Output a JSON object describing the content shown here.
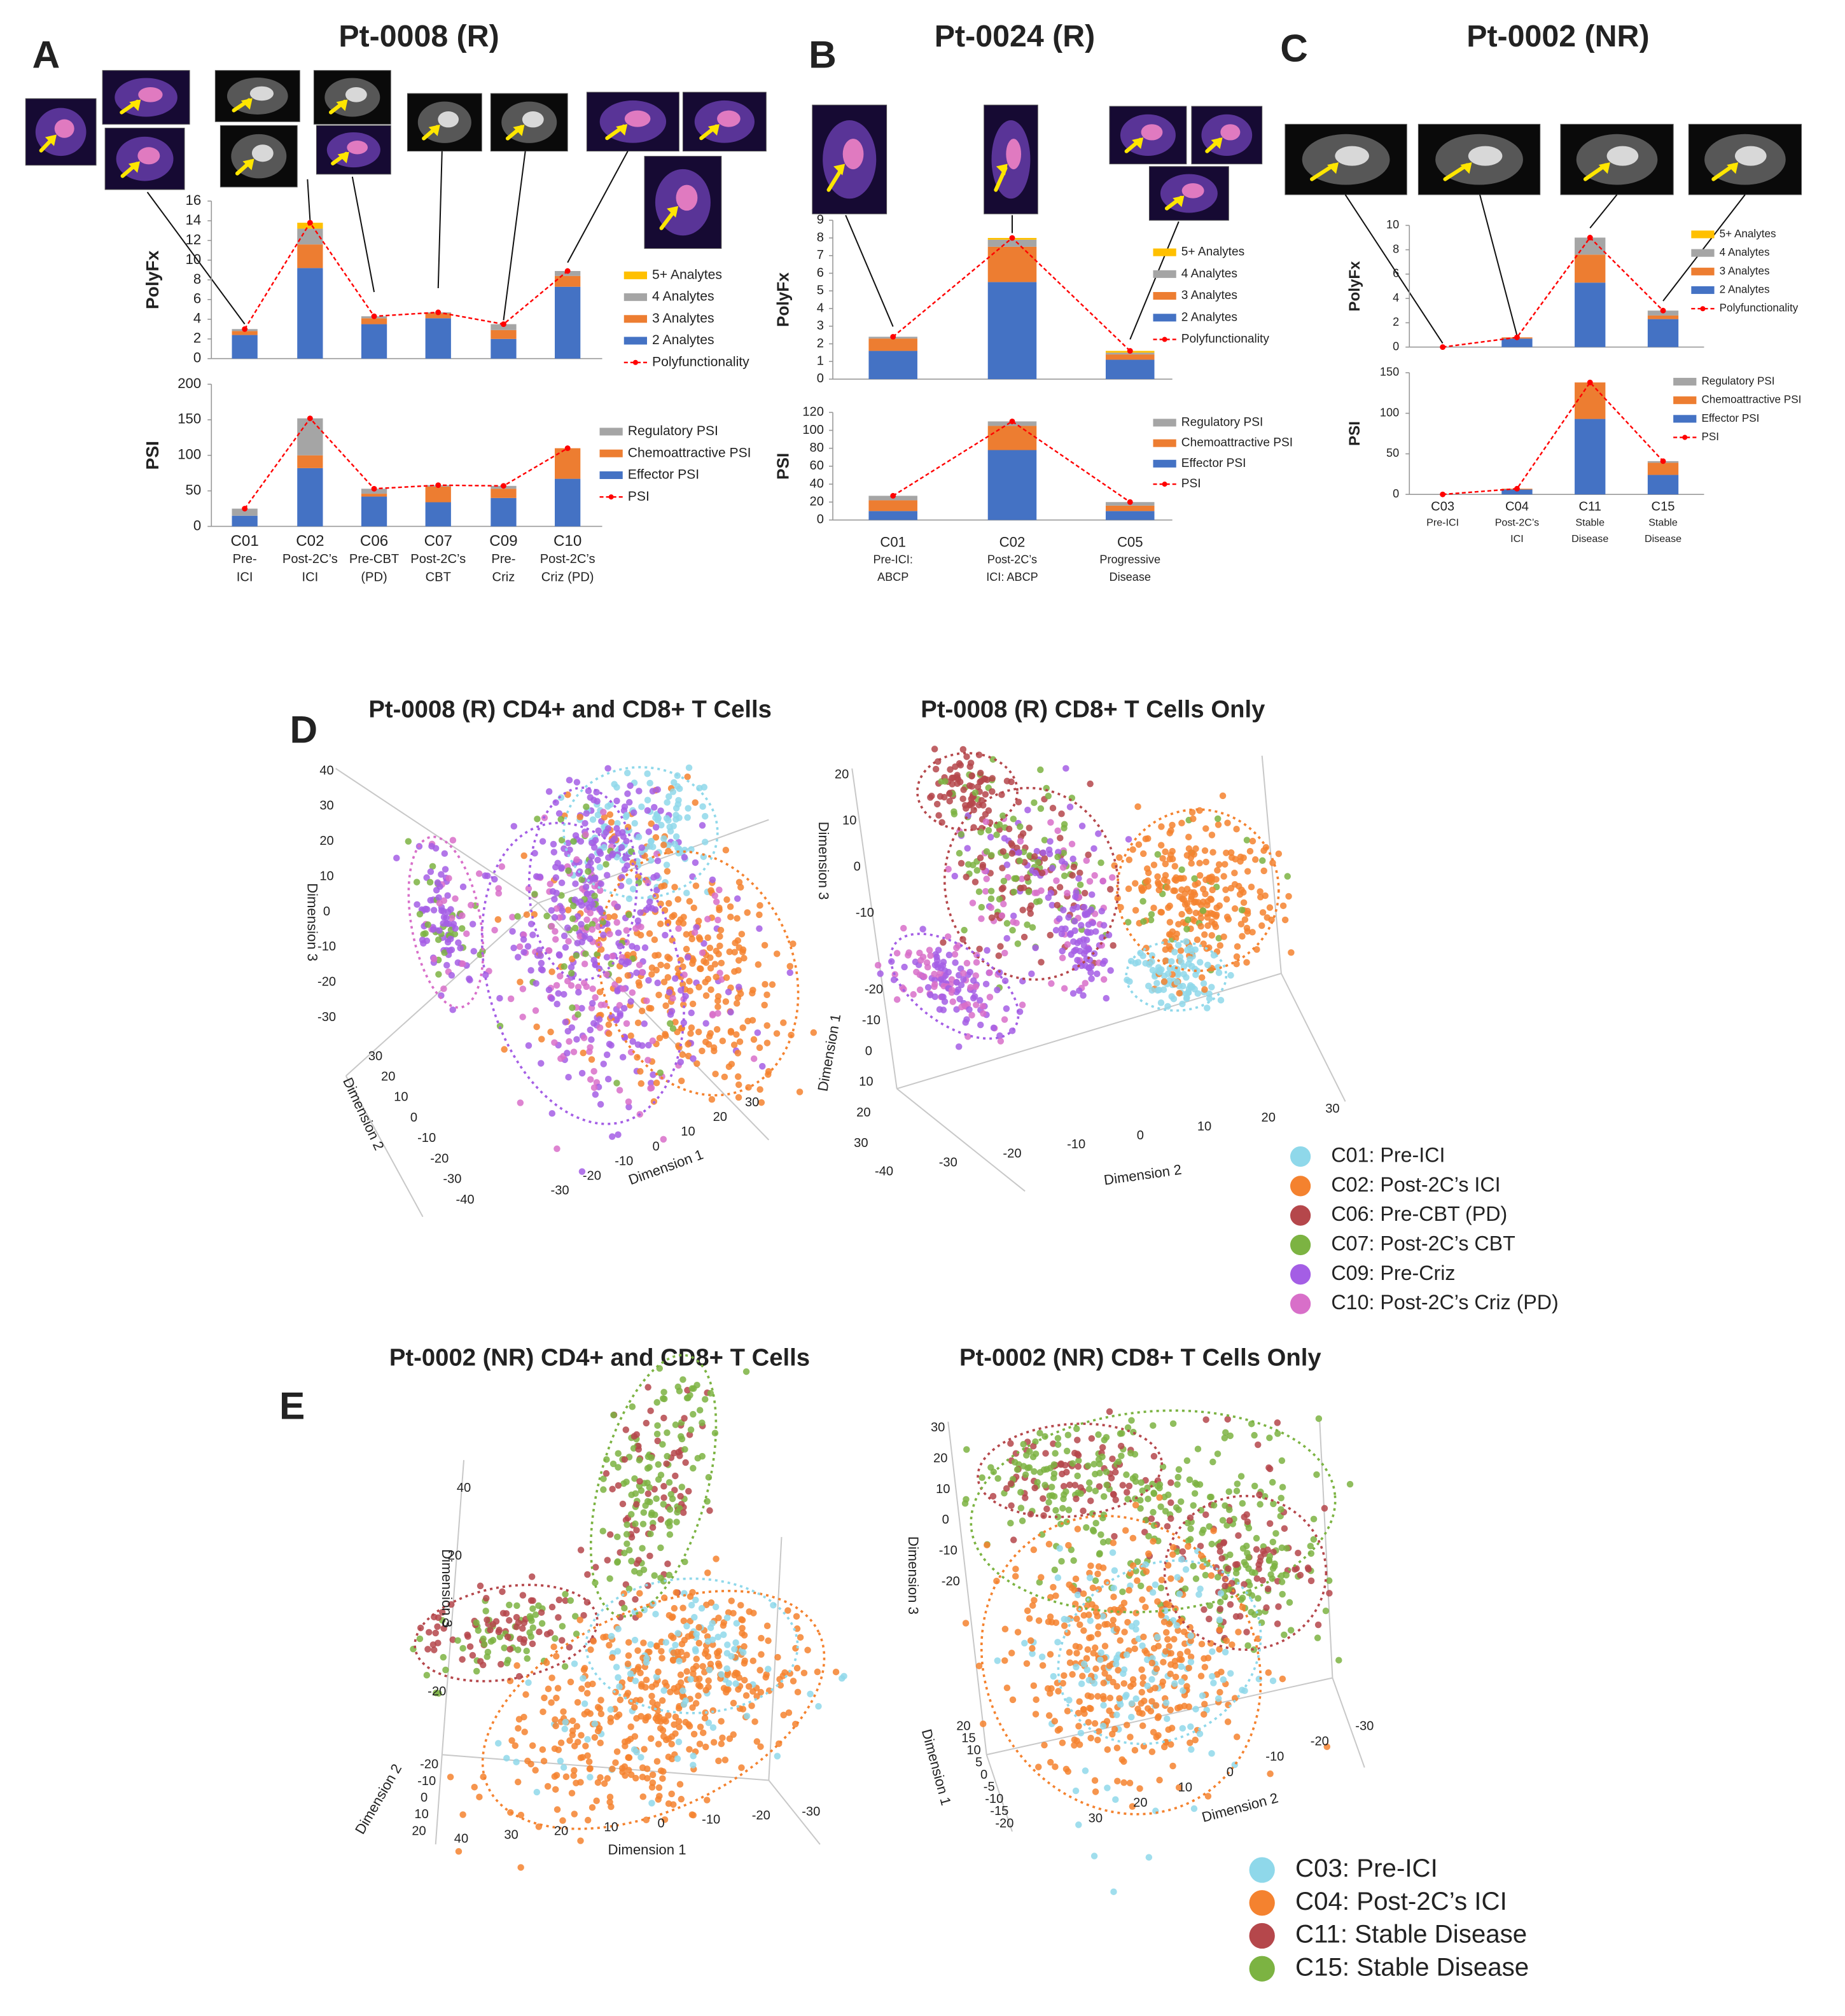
{
  "chart_data": [
    {
      "type": "bar",
      "panel_label": "A",
      "title": "Pt-0008 (R)",
      "ylabel": "PolyFx",
      "ylim": [
        0,
        16
      ],
      "yticks": [
        0,
        2,
        4,
        6,
        8,
        10,
        12,
        14,
        16
      ],
      "series": [
        {
          "name": "2 Analytes",
          "color": "#4472c4",
          "values": [
            2.4,
            9.2,
            3.5,
            4.1,
            2.0,
            7.3
          ]
        },
        {
          "name": "3 Analytes",
          "color": "#ed7d31",
          "values": [
            0.4,
            2.4,
            0.6,
            0.5,
            0.9,
            1.1
          ]
        },
        {
          "name": "4 Analytes",
          "color": "#a5a5a5",
          "values": [
            0.2,
            1.6,
            0.2,
            0.1,
            0.6,
            0.5
          ]
        },
        {
          "name": "5+ Analytes",
          "color": "#ffc000",
          "values": [
            0,
            0.6,
            0,
            0,
            0,
            0
          ]
        },
        {
          "name": "Polyfunctionality",
          "color": "#ff0000",
          "type": "line",
          "values": [
            3.0,
            13.8,
            4.3,
            4.7,
            3.5,
            8.9
          ]
        }
      ]
    },
    {
      "type": "bar",
      "ylabel": "PSI",
      "ylim": [
        0,
        200
      ],
      "yticks": [
        0,
        50,
        100,
        150,
        200
      ],
      "categories": [
        [
          "C01",
          "Pre-",
          "ICI"
        ],
        [
          "C02",
          "Post-2C’s",
          "ICI"
        ],
        [
          "C06",
          "Pre-CBT",
          "(PD)"
        ],
        [
          "C07",
          "Post-2C’s",
          "CBT"
        ],
        [
          "C09",
          "Pre-",
          "Criz"
        ],
        [
          "C10",
          "Post-2C’s",
          "Criz (PD)"
        ]
      ],
      "series": [
        {
          "name": "Effector PSI",
          "color": "#4472c4",
          "values": [
            15,
            82,
            42,
            34,
            40,
            67
          ]
        },
        {
          "name": "Chemoattractive PSI",
          "color": "#ed7d31",
          "values": [
            0,
            18,
            4,
            22,
            13,
            43
          ]
        },
        {
          "name": "Regulatory PSI",
          "color": "#a5a5a5",
          "values": [
            10,
            52,
            7,
            2,
            4,
            0
          ]
        },
        {
          "name": "PSI",
          "color": "#ff0000",
          "type": "line",
          "values": [
            25,
            152,
            53,
            58,
            57,
            110
          ]
        }
      ]
    },
    {
      "type": "bar",
      "panel_label": "B",
      "title": "Pt-0024 (R)",
      "ylabel": "PolyFx",
      "ylim": [
        0,
        9
      ],
      "yticks": [
        0,
        1,
        2,
        3,
        4,
        5,
        6,
        7,
        8,
        9
      ],
      "series": [
        {
          "name": "2 Analytes",
          "color": "#4472c4",
          "values": [
            1.6,
            5.5,
            1.1
          ]
        },
        {
          "name": "3 Analytes",
          "color": "#ed7d31",
          "values": [
            0.7,
            2.0,
            0.3
          ]
        },
        {
          "name": "4 Analytes",
          "color": "#a5a5a5",
          "values": [
            0.1,
            0.4,
            0.1
          ]
        },
        {
          "name": "5+ Analytes",
          "color": "#ffc000",
          "values": [
            0,
            0.1,
            0.1
          ]
        },
        {
          "name": "Polyfunctionality",
          "color": "#ff0000",
          "type": "line",
          "values": [
            2.4,
            8.0,
            1.6
          ]
        }
      ]
    },
    {
      "type": "bar",
      "ylabel": "PSI",
      "ylim": [
        0,
        120
      ],
      "yticks": [
        0,
        20,
        40,
        60,
        80,
        100,
        120
      ],
      "categories": [
        [
          "C01",
          "Pre-ICI:",
          "ABCP"
        ],
        [
          "C02",
          "Post-2C’s",
          "ICI: ABCP"
        ],
        [
          "C05",
          "Progressive",
          "Disease"
        ]
      ],
      "series": [
        {
          "name": "Effector PSI",
          "color": "#4472c4",
          "values": [
            10,
            78,
            10
          ]
        },
        {
          "name": "Chemoattractive PSI",
          "color": "#ed7d31",
          "values": [
            12,
            27,
            6
          ]
        },
        {
          "name": "Regulatory PSI",
          "color": "#a5a5a5",
          "values": [
            5,
            5,
            4
          ]
        },
        {
          "name": "PSI",
          "color": "#ff0000",
          "type": "line",
          "values": [
            27,
            110,
            20
          ]
        }
      ]
    },
    {
      "type": "bar",
      "panel_label": "C",
      "title": "Pt-0002 (NR)",
      "ylabel": "PolyFx",
      "ylim": [
        0,
        10
      ],
      "yticks": [
        0,
        2,
        4,
        6,
        8,
        10
      ],
      "series": [
        {
          "name": "2 Analytes",
          "color": "#4472c4",
          "values": [
            0,
            0.7,
            5.3,
            2.3
          ]
        },
        {
          "name": "3 Analytes",
          "color": "#ed7d31",
          "values": [
            0,
            0.1,
            2.3,
            0.3
          ]
        },
        {
          "name": "4 Analytes",
          "color": "#a5a5a5",
          "values": [
            0,
            0,
            1.4,
            0.4
          ]
        },
        {
          "name": "5+ Analytes",
          "color": "#ffc000",
          "values": [
            0,
            0,
            0,
            0
          ]
        },
        {
          "name": "Polyfunctionality",
          "color": "#ff0000",
          "type": "line",
          "values": [
            0,
            0.8,
            9.0,
            3.0
          ]
        }
      ]
    },
    {
      "type": "bar",
      "ylabel": "PSI",
      "ylim": [
        0,
        150
      ],
      "yticks": [
        0,
        50,
        100,
        150
      ],
      "categories": [
        [
          "C03",
          "Pre-ICI"
        ],
        [
          "C04",
          "Post-2C’s",
          "ICI"
        ],
        [
          "C11",
          "Stable",
          "Disease"
        ],
        [
          "C15",
          "Stable",
          "Disease"
        ]
      ],
      "series": [
        {
          "name": "Effector PSI",
          "color": "#4472c4",
          "values": [
            0,
            6,
            93,
            24
          ]
        },
        {
          "name": "Chemoattractive PSI",
          "color": "#ed7d31",
          "values": [
            0,
            1,
            45,
            15
          ]
        },
        {
          "name": "Regulatory PSI",
          "color": "#a5a5a5",
          "values": [
            0,
            0,
            0,
            2
          ]
        },
        {
          "name": "PSI",
          "color": "#ff0000",
          "type": "line",
          "values": [
            0,
            7,
            138,
            41
          ]
        }
      ]
    },
    {
      "type": "scatter3d",
      "panel_label": "D",
      "title": "Pt-0008 (R) CD4+ and CD8+ T Cells",
      "legend": 0,
      "axes": [
        {
          "label": "Dimension 3",
          "ticks": [
            40,
            30,
            20,
            10,
            0,
            -10,
            -20,
            -30
          ]
        },
        {
          "label": "Dimension 2",
          "ticks": [
            30,
            20,
            10,
            0,
            -10,
            -20,
            -30,
            -40
          ]
        },
        {
          "label": "Dimension 1",
          "ticks": [
            -30,
            -20,
            -10,
            0,
            10,
            20,
            30
          ]
        }
      ]
    },
    {
      "type": "scatter3d",
      "title": "Pt-0008 (R) CD8+ T Cells Only",
      "legend": 0,
      "axes": [
        {
          "label": "Dimension 3",
          "ticks": [
            20,
            10,
            0,
            -10
          ]
        },
        {
          "label": "Dimension 1",
          "ticks": [
            -20,
            -10,
            0,
            10,
            20,
            30
          ]
        },
        {
          "label": "Dimension 2",
          "ticks": [
            -40,
            -30,
            -20,
            -10,
            0,
            10,
            20,
            30
          ]
        }
      ]
    },
    {
      "type": "scatter3d",
      "panel_label": "E",
      "title": "Pt-0002 (NR) CD4+ and CD8+ T Cells",
      "legend": 1,
      "axes": [
        {
          "label": "Dimension 3",
          "ticks": [
            40,
            20,
            0,
            -20
          ]
        },
        {
          "label": "Dimension 2",
          "ticks": [
            -20,
            -10,
            0,
            10,
            20
          ]
        },
        {
          "label": "Dimension 1",
          "ticks": [
            40,
            30,
            20,
            10,
            0,
            -10,
            -20,
            -30
          ]
        }
      ]
    },
    {
      "type": "scatter3d",
      "title": "Pt-0002 (NR) CD8+ T Cells Only",
      "legend": 1,
      "axes": [
        {
          "label": "Dimension 3",
          "ticks": [
            30,
            20,
            10,
            0,
            -10,
            -20
          ]
        },
        {
          "label": "Dimension 1",
          "ticks": [
            20,
            15,
            10,
            5,
            0,
            -5,
            -10,
            -15,
            -20
          ]
        },
        {
          "label": "Dimension 2",
          "ticks": [
            30,
            20,
            10,
            0,
            -10,
            -20,
            -30
          ]
        }
      ]
    }
  ],
  "legends": [
    {
      "items": [
        {
          "name": "C01: Pre-ICI",
          "color": "#8fd8ea"
        },
        {
          "name": "C02: Post-2C’s ICI",
          "color": "#f4822f"
        },
        {
          "name": "C06: Pre-CBT (PD)",
          "color": "#b5474b"
        },
        {
          "name": "C07: Post-2C’s CBT",
          "color": "#7cb342"
        },
        {
          "name": "C09: Pre-Criz",
          "color": "#a45ee5"
        },
        {
          "name": "C10: Post-2C’s Criz (PD)",
          "color": "#d86fc9"
        }
      ]
    },
    {
      "items": [
        {
          "name": "C03: Pre-ICI",
          "color": "#8fd8ea"
        },
        {
          "name": "C04: Post-2C’s ICI",
          "color": "#f4822f"
        },
        {
          "name": "C11: Stable Disease",
          "color": "#b5474b"
        },
        {
          "name": "C15: Stable Disease",
          "color": "#7cb342"
        }
      ]
    }
  ]
}
